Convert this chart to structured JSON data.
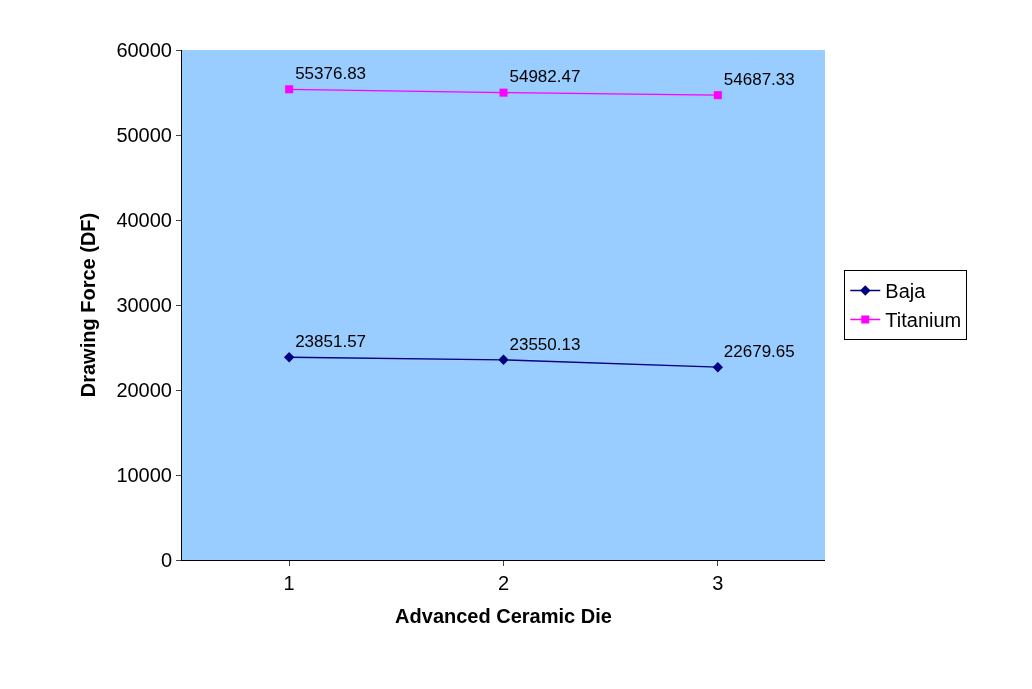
{
  "chart_data": {
    "type": "line",
    "xlabel": "Advanced Ceramic Die",
    "ylabel": "Drawing Force (DF)",
    "categories": [
      "1",
      "2",
      "3"
    ],
    "series": [
      {
        "name": "Baja",
        "color": "#000080",
        "marker": "diamond",
        "values": [
          23851.57,
          23550.13,
          22679.65
        ]
      },
      {
        "name": "Titanium",
        "color": "#ff00ff",
        "marker": "square",
        "values": [
          55376.83,
          54982.47,
          54687.33
        ]
      }
    ],
    "ylim": [
      0,
      60000
    ],
    "yticks": [
      0,
      10000,
      20000,
      30000,
      40000,
      50000,
      60000
    ],
    "grid": false,
    "legend": "right",
    "data_labels": true,
    "line_style": "solid"
  }
}
